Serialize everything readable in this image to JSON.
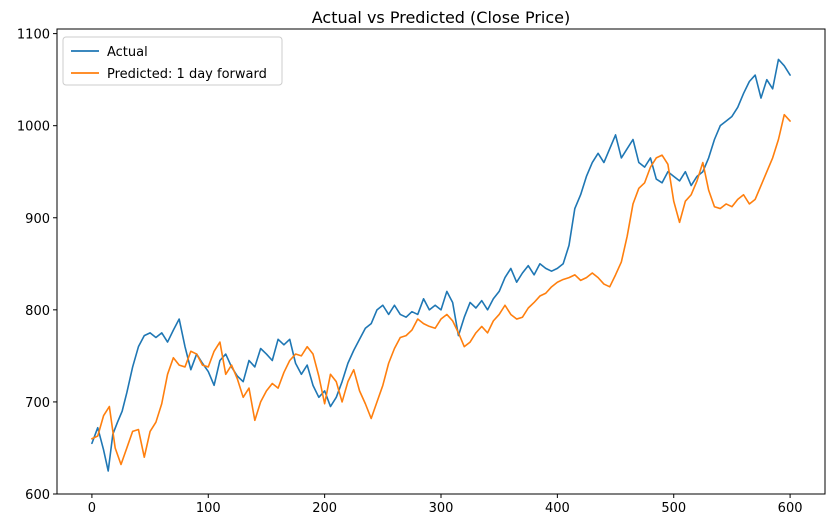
{
  "chart_data": {
    "type": "line",
    "title": "Actual vs Predicted (Close Price)",
    "xlabel": "",
    "ylabel": "",
    "xlim": [
      -30,
      630
    ],
    "ylim": [
      600,
      1105
    ],
    "grid": false,
    "legend_position": "top-left",
    "x_ticks": [
      0,
      100,
      200,
      300,
      400,
      500,
      600
    ],
    "y_ticks": [
      600,
      700,
      800,
      900,
      1000,
      1100
    ],
    "series": [
      {
        "name": "Actual",
        "color": "#1f77b4",
        "points": [
          [
            0,
            655
          ],
          [
            5,
            672
          ],
          [
            10,
            648
          ],
          [
            14,
            625
          ],
          [
            18,
            665
          ],
          [
            22,
            678
          ],
          [
            26,
            690
          ],
          [
            30,
            710
          ],
          [
            35,
            738
          ],
          [
            40,
            760
          ],
          [
            45,
            772
          ],
          [
            50,
            775
          ],
          [
            55,
            770
          ],
          [
            60,
            775
          ],
          [
            65,
            765
          ],
          [
            70,
            778
          ],
          [
            75,
            790
          ],
          [
            80,
            760
          ],
          [
            85,
            735
          ],
          [
            90,
            752
          ],
          [
            95,
            742
          ],
          [
            100,
            733
          ],
          [
            105,
            718
          ],
          [
            110,
            745
          ],
          [
            115,
            752
          ],
          [
            120,
            738
          ],
          [
            125,
            728
          ],
          [
            130,
            722
          ],
          [
            135,
            745
          ],
          [
            140,
            738
          ],
          [
            145,
            758
          ],
          [
            150,
            752
          ],
          [
            155,
            745
          ],
          [
            160,
            768
          ],
          [
            165,
            762
          ],
          [
            170,
            768
          ],
          [
            175,
            742
          ],
          [
            180,
            730
          ],
          [
            185,
            740
          ],
          [
            190,
            718
          ],
          [
            195,
            705
          ],
          [
            200,
            712
          ],
          [
            205,
            695
          ],
          [
            210,
            705
          ],
          [
            215,
            722
          ],
          [
            220,
            742
          ],
          [
            225,
            756
          ],
          [
            230,
            768
          ],
          [
            235,
            780
          ],
          [
            240,
            785
          ],
          [
            245,
            800
          ],
          [
            250,
            805
          ],
          [
            255,
            795
          ],
          [
            260,
            805
          ],
          [
            265,
            795
          ],
          [
            270,
            792
          ],
          [
            275,
            798
          ],
          [
            280,
            795
          ],
          [
            285,
            812
          ],
          [
            290,
            800
          ],
          [
            295,
            805
          ],
          [
            300,
            800
          ],
          [
            305,
            820
          ],
          [
            310,
            808
          ],
          [
            315,
            772
          ],
          [
            320,
            792
          ],
          [
            325,
            808
          ],
          [
            330,
            802
          ],
          [
            335,
            810
          ],
          [
            340,
            800
          ],
          [
            345,
            812
          ],
          [
            350,
            820
          ],
          [
            355,
            835
          ],
          [
            360,
            845
          ],
          [
            365,
            830
          ],
          [
            370,
            840
          ],
          [
            375,
            848
          ],
          [
            380,
            838
          ],
          [
            385,
            850
          ],
          [
            390,
            845
          ],
          [
            395,
            842
          ],
          [
            400,
            845
          ],
          [
            405,
            850
          ],
          [
            410,
            870
          ],
          [
            415,
            910
          ],
          [
            420,
            925
          ],
          [
            425,
            945
          ],
          [
            430,
            960
          ],
          [
            435,
            970
          ],
          [
            440,
            960
          ],
          [
            445,
            975
          ],
          [
            450,
            990
          ],
          [
            455,
            965
          ],
          [
            460,
            975
          ],
          [
            465,
            985
          ],
          [
            470,
            960
          ],
          [
            475,
            955
          ],
          [
            480,
            965
          ],
          [
            485,
            942
          ],
          [
            490,
            938
          ],
          [
            495,
            950
          ],
          [
            500,
            945
          ],
          [
            505,
            940
          ],
          [
            510,
            950
          ],
          [
            515,
            935
          ],
          [
            520,
            945
          ],
          [
            525,
            950
          ],
          [
            530,
            965
          ],
          [
            535,
            985
          ],
          [
            540,
            1000
          ],
          [
            545,
            1005
          ],
          [
            550,
            1010
          ],
          [
            555,
            1020
          ],
          [
            560,
            1035
          ],
          [
            565,
            1048
          ],
          [
            570,
            1055
          ],
          [
            575,
            1030
          ],
          [
            580,
            1050
          ],
          [
            585,
            1040
          ],
          [
            590,
            1072
          ],
          [
            595,
            1065
          ],
          [
            600,
            1055
          ]
        ]
      },
      {
        "name": "Predicted: 1 day forward",
        "color": "#ff7f0e",
        "points": [
          [
            0,
            660
          ],
          [
            5,
            663
          ],
          [
            10,
            685
          ],
          [
            15,
            695
          ],
          [
            20,
            650
          ],
          [
            25,
            632
          ],
          [
            30,
            650
          ],
          [
            35,
            668
          ],
          [
            40,
            670
          ],
          [
            45,
            640
          ],
          [
            50,
            668
          ],
          [
            55,
            678
          ],
          [
            60,
            698
          ],
          [
            65,
            730
          ],
          [
            70,
            748
          ],
          [
            75,
            740
          ],
          [
            80,
            738
          ],
          [
            85,
            755
          ],
          [
            90,
            752
          ],
          [
            95,
            740
          ],
          [
            100,
            738
          ],
          [
            105,
            755
          ],
          [
            110,
            765
          ],
          [
            115,
            730
          ],
          [
            120,
            740
          ],
          [
            125,
            725
          ],
          [
            130,
            705
          ],
          [
            135,
            715
          ],
          [
            140,
            680
          ],
          [
            145,
            700
          ],
          [
            150,
            712
          ],
          [
            155,
            720
          ],
          [
            160,
            715
          ],
          [
            165,
            732
          ],
          [
            170,
            745
          ],
          [
            175,
            752
          ],
          [
            180,
            750
          ],
          [
            185,
            760
          ],
          [
            190,
            752
          ],
          [
            195,
            728
          ],
          [
            200,
            698
          ],
          [
            205,
            730
          ],
          [
            210,
            722
          ],
          [
            215,
            700
          ],
          [
            220,
            722
          ],
          [
            225,
            735
          ],
          [
            230,
            712
          ],
          [
            235,
            698
          ],
          [
            240,
            682
          ],
          [
            245,
            700
          ],
          [
            250,
            718
          ],
          [
            255,
            742
          ],
          [
            260,
            758
          ],
          [
            265,
            770
          ],
          [
            270,
            772
          ],
          [
            275,
            778
          ],
          [
            280,
            790
          ],
          [
            285,
            785
          ],
          [
            290,
            782
          ],
          [
            295,
            780
          ],
          [
            300,
            790
          ],
          [
            305,
            795
          ],
          [
            310,
            788
          ],
          [
            315,
            775
          ],
          [
            320,
            760
          ],
          [
            325,
            765
          ],
          [
            330,
            775
          ],
          [
            335,
            782
          ],
          [
            340,
            775
          ],
          [
            345,
            788
          ],
          [
            350,
            795
          ],
          [
            355,
            805
          ],
          [
            360,
            795
          ],
          [
            365,
            790
          ],
          [
            370,
            792
          ],
          [
            375,
            802
          ],
          [
            380,
            808
          ],
          [
            385,
            815
          ],
          [
            390,
            818
          ],
          [
            395,
            825
          ],
          [
            400,
            830
          ],
          [
            405,
            833
          ],
          [
            410,
            835
          ],
          [
            415,
            838
          ],
          [
            420,
            832
          ],
          [
            425,
            835
          ],
          [
            430,
            840
          ],
          [
            435,
            835
          ],
          [
            440,
            828
          ],
          [
            445,
            825
          ],
          [
            450,
            838
          ],
          [
            455,
            852
          ],
          [
            460,
            880
          ],
          [
            465,
            915
          ],
          [
            470,
            932
          ],
          [
            475,
            938
          ],
          [
            480,
            955
          ],
          [
            485,
            965
          ],
          [
            490,
            968
          ],
          [
            495,
            958
          ],
          [
            500,
            918
          ],
          [
            505,
            895
          ],
          [
            510,
            918
          ],
          [
            515,
            925
          ],
          [
            520,
            940
          ],
          [
            525,
            960
          ],
          [
            530,
            930
          ],
          [
            535,
            912
          ],
          [
            540,
            910
          ],
          [
            545,
            915
          ],
          [
            550,
            912
          ],
          [
            555,
            920
          ],
          [
            560,
            925
          ],
          [
            565,
            915
          ],
          [
            570,
            920
          ],
          [
            575,
            935
          ],
          [
            580,
            950
          ],
          [
            585,
            965
          ],
          [
            590,
            985
          ],
          [
            595,
            1012
          ],
          [
            600,
            1005
          ]
        ]
      }
    ]
  }
}
